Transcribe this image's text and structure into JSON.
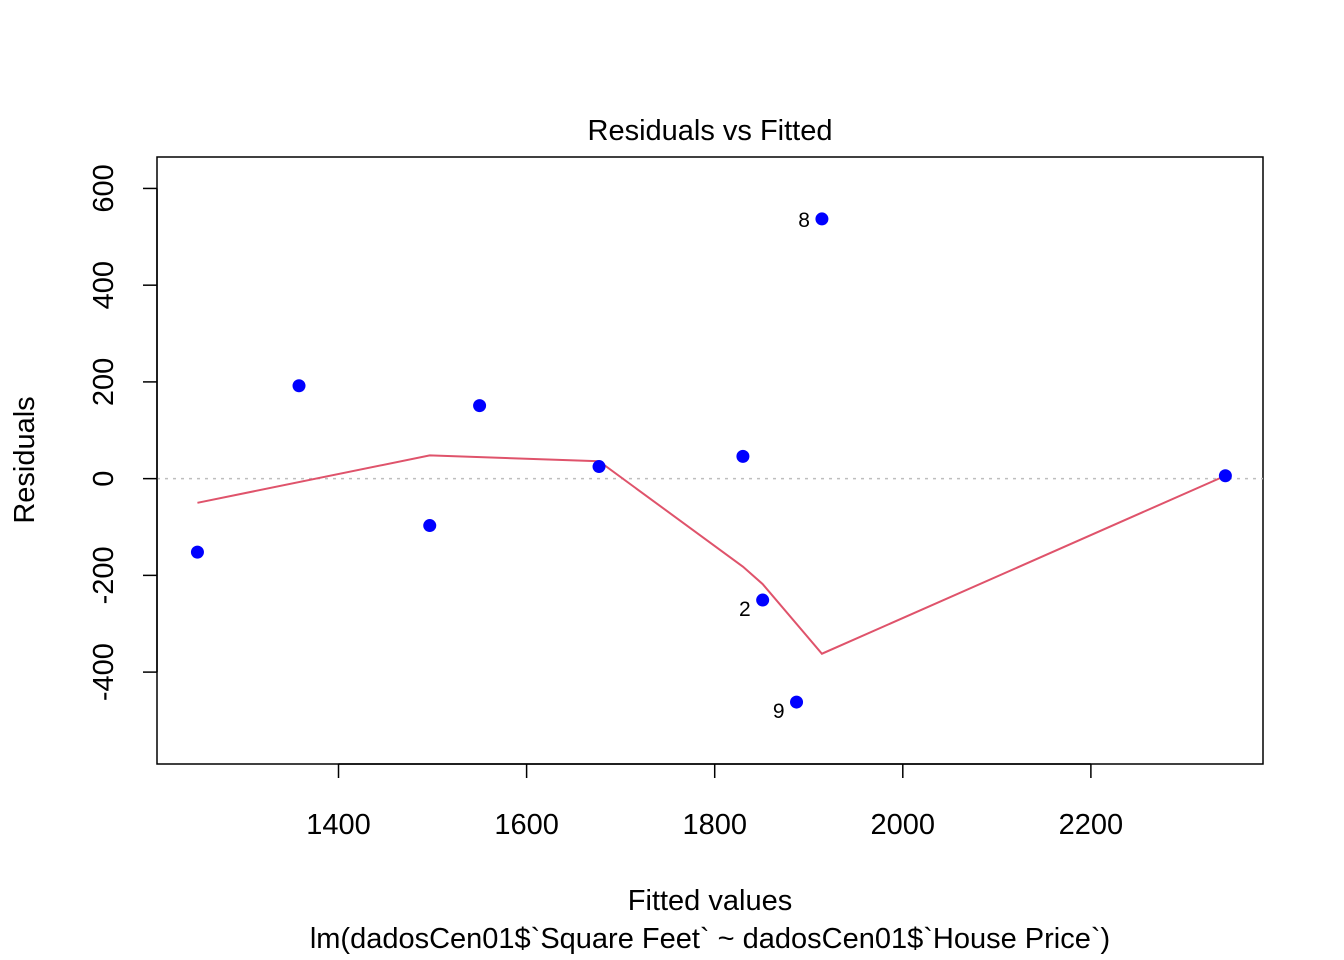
{
  "chart_data": {
    "type": "scatter",
    "title": "Residuals vs Fitted",
    "xlabel": "Fitted values",
    "ylabel": "Residuals",
    "subtitle": "lm(dadosCen01$`Square Feet` ~ dadosCen01$`House Price`)",
    "xlim": [
      1207,
      2383
    ],
    "ylim": [
      -590,
      665
    ],
    "x_ticks": [
      1400,
      1600,
      1800,
      2000,
      2200
    ],
    "y_ticks": [
      -400,
      -200,
      0,
      200,
      400,
      600
    ],
    "reference_line_y": 0,
    "points": [
      {
        "x": 1250,
        "y": -152,
        "label": ""
      },
      {
        "x": 1358,
        "y": 192,
        "label": ""
      },
      {
        "x": 1497,
        "y": -97,
        "label": ""
      },
      {
        "x": 1550,
        "y": 151,
        "label": ""
      },
      {
        "x": 1677,
        "y": 25,
        "label": ""
      },
      {
        "x": 1830,
        "y": 46,
        "label": ""
      },
      {
        "x": 1851,
        "y": -251,
        "label": "2"
      },
      {
        "x": 1887,
        "y": -462,
        "label": "9"
      },
      {
        "x": 1914,
        "y": 537,
        "label": "8"
      },
      {
        "x": 2343,
        "y": 6,
        "label": ""
      }
    ],
    "smoother": [
      {
        "x": 1250,
        "y": -50
      },
      {
        "x": 1497,
        "y": 48
      },
      {
        "x": 1677,
        "y": 36
      },
      {
        "x": 1830,
        "y": -182
      },
      {
        "x": 1851,
        "y": -218
      },
      {
        "x": 1914,
        "y": -362
      },
      {
        "x": 2343,
        "y": 6
      }
    ],
    "colors": {
      "points": "#0000ff",
      "smoother": "#df536b",
      "reference_line": "#bebebe",
      "frame": "#000000"
    }
  }
}
